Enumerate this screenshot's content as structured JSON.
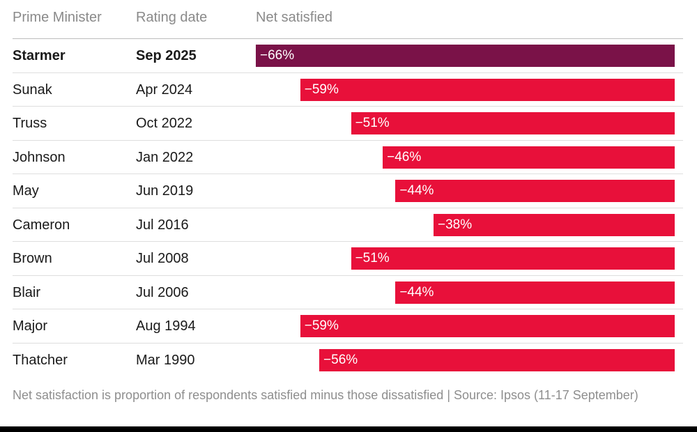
{
  "headers": {
    "prime_minister": "Prime Minister",
    "rating_date": "Rating date",
    "net_satisfied": "Net satisfied"
  },
  "colors": {
    "highlight_bar": "#7a1248",
    "bar": "#e8103a",
    "header_text": "#8a8a8a",
    "footnote_text": "#8e8e8e"
  },
  "rows": [
    {
      "name": "Starmer",
      "date": "Sep 2025",
      "label": "−66%",
      "value": -66,
      "highlight": true
    },
    {
      "name": "Sunak",
      "date": "Apr 2024",
      "label": "−59%",
      "value": -59,
      "highlight": false
    },
    {
      "name": "Truss",
      "date": "Oct 2022",
      "label": "−51%",
      "value": -51,
      "highlight": false
    },
    {
      "name": "Johnson",
      "date": "Jan 2022",
      "label": "−46%",
      "value": -46,
      "highlight": false
    },
    {
      "name": "May",
      "date": "Jun 2019",
      "label": "−44%",
      "value": -44,
      "highlight": false
    },
    {
      "name": "Cameron",
      "date": "Jul 2016",
      "label": "−38%",
      "value": -38,
      "highlight": false
    },
    {
      "name": "Brown",
      "date": "Jul 2008",
      "label": "−51%",
      "value": -51,
      "highlight": false
    },
    {
      "name": "Blair",
      "date": "Jul 2006",
      "label": "−44%",
      "value": -44,
      "highlight": false
    },
    {
      "name": "Major",
      "date": "Aug 1994",
      "label": "−59%",
      "value": -59,
      "highlight": false
    },
    {
      "name": "Thatcher",
      "date": "Mar 1990",
      "label": "−56%",
      "value": -56,
      "highlight": false
    }
  ],
  "chart_data": {
    "type": "bar",
    "orientation": "horizontal",
    "title": "",
    "xlabel": "Net satisfied",
    "ylabel": "Prime Minister",
    "categories": [
      "Starmer",
      "Sunak",
      "Truss",
      "Johnson",
      "May",
      "Cameron",
      "Brown",
      "Blair",
      "Major",
      "Thatcher"
    ],
    "rating_dates": [
      "Sep 2025",
      "Apr 2024",
      "Oct 2022",
      "Jan 2022",
      "Jun 2019",
      "Jul 2016",
      "Jul 2008",
      "Jul 2006",
      "Aug 1994",
      "Mar 1990"
    ],
    "values": [
      -66,
      -59,
      -51,
      -46,
      -44,
      -38,
      -51,
      -44,
      -59,
      -56
    ],
    "xlim": [
      -66,
      0
    ],
    "grid": false,
    "legend": "none"
  },
  "footnote": "Net satisfaction is proportion of respondents satisfied minus those dissatisfied | Source: Ipsos (11-17 September)"
}
